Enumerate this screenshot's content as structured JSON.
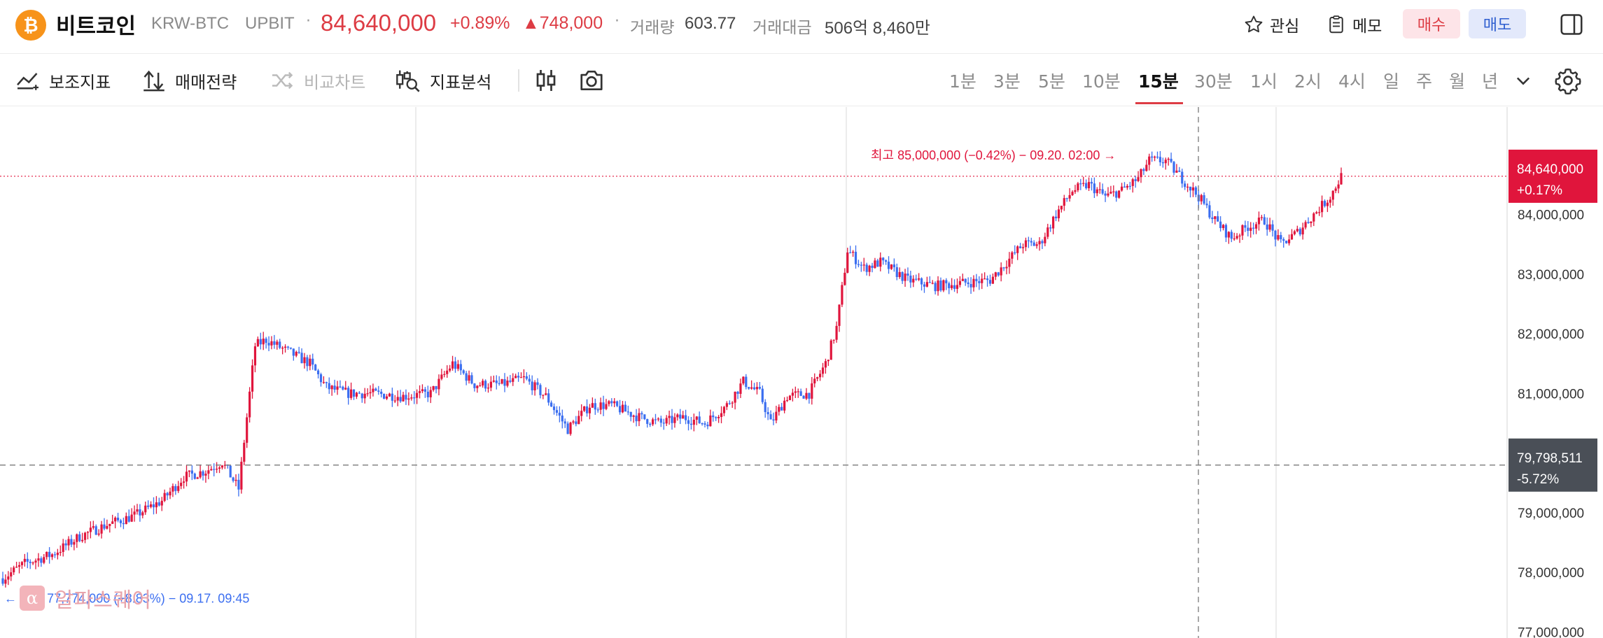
{
  "header": {
    "coin_icon": "bitcoin-icon",
    "coin_glyph": "₿",
    "coin_name": "비트코인",
    "pair": "KRW-BTC",
    "exchange": "UPBIT",
    "separator": "·",
    "price": "84,640,000",
    "change_pct": "+0.89%",
    "change_abs": "▲748,000",
    "volume_label": "거래량",
    "volume_value": "603.77",
    "amount_label": "거래대금",
    "amount_value": "506억 8,460만",
    "favorite_label": "관심",
    "memo_label": "메모",
    "buy_label": "매수",
    "sell_label": "매도"
  },
  "toolbar": {
    "indicators_label": "보조지표",
    "strategy_label": "매매전략",
    "compare_label": "비교차트",
    "analysis_label": "지표분석",
    "timeframes": [
      "1분",
      "3분",
      "5분",
      "10분",
      "15분",
      "30분",
      "1시",
      "2시",
      "4시",
      "일",
      "주",
      "월",
      "년"
    ],
    "active_timeframe": "15분"
  },
  "colors": {
    "up": "#e0153c",
    "down": "#3b6ef0",
    "accent_red": "#dd3c44",
    "price_tag_bg": "#e0153c",
    "crosshair_tag_bg": "#4a4f57"
  },
  "chart_data": {
    "type": "candlestick",
    "y_axis_labels": [
      "84,000,000",
      "83,000,000",
      "82,000,000",
      "81,000,000",
      "79,000,000",
      "78,000,000",
      "77,000,000"
    ],
    "y_axis_values": [
      84000000,
      83000000,
      82000000,
      81000000,
      79000000,
      78000000,
      77000000
    ],
    "ylim": [
      76900000,
      85800000
    ],
    "current_price_label": "84,640,000",
    "current_change_label": "+0.17%",
    "current_price": 84640000,
    "crosshair_price_label": "79,798,511",
    "crosshair_change_label": "-5.72%",
    "crosshair_price": 79798511,
    "high_annotation": "최고 85,000,000 (−0.42%) − 09.20. 02:00 →",
    "low_annotation": "← 최저 77,774,000 (+8.83%) − 09.17. 09:45",
    "high_value": 85000000,
    "low_value": 77774000,
    "close_path": [
      [
        0,
        77900000
      ],
      [
        8,
        78150000
      ],
      [
        18,
        78300000
      ],
      [
        28,
        78600000
      ],
      [
        38,
        78800000
      ],
      [
        48,
        78950000
      ],
      [
        58,
        79200000
      ],
      [
        66,
        79600000
      ],
      [
        74,
        79700000
      ],
      [
        80,
        79850000
      ],
      [
        86,
        79400000
      ],
      [
        88,
        80200000
      ],
      [
        92,
        81800000
      ],
      [
        96,
        81900000
      ],
      [
        104,
        81700000
      ],
      [
        112,
        81500000
      ],
      [
        118,
        81100000
      ],
      [
        126,
        81000000
      ],
      [
        134,
        81000000
      ],
      [
        146,
        80950000
      ],
      [
        156,
        81000000
      ],
      [
        164,
        81500000
      ],
      [
        172,
        81150000
      ],
      [
        182,
        81150000
      ],
      [
        190,
        81250000
      ],
      [
        198,
        80950000
      ],
      [
        206,
        80400000
      ],
      [
        214,
        80800000
      ],
      [
        222,
        80800000
      ],
      [
        232,
        80600000
      ],
      [
        240,
        80500000
      ],
      [
        248,
        80600000
      ],
      [
        256,
        80500000
      ],
      [
        264,
        80800000
      ],
      [
        270,
        81200000
      ],
      [
        276,
        81000000
      ],
      [
        280,
        80500000
      ],
      [
        286,
        80950000
      ],
      [
        294,
        81000000
      ],
      [
        300,
        81500000
      ],
      [
        304,
        82100000
      ],
      [
        308,
        83400000
      ],
      [
        314,
        83100000
      ],
      [
        320,
        83200000
      ],
      [
        330,
        82900000
      ],
      [
        340,
        82800000
      ],
      [
        350,
        82850000
      ],
      [
        360,
        82900000
      ],
      [
        366,
        83200000
      ],
      [
        372,
        83500000
      ],
      [
        378,
        83500000
      ],
      [
        384,
        84000000
      ],
      [
        390,
        84400000
      ],
      [
        396,
        84500000
      ],
      [
        402,
        84300000
      ],
      [
        408,
        84400000
      ],
      [
        414,
        84600000
      ],
      [
        418,
        84900000
      ],
      [
        424,
        84900000
      ],
      [
        430,
        84600000
      ],
      [
        436,
        84300000
      ],
      [
        442,
        83900000
      ],
      [
        448,
        83600000
      ],
      [
        454,
        83800000
      ],
      [
        460,
        83900000
      ],
      [
        466,
        83500000
      ],
      [
        472,
        83700000
      ],
      [
        478,
        84000000
      ],
      [
        484,
        84300000
      ],
      [
        488,
        84640000
      ]
    ]
  },
  "watermark": {
    "logo_glyph": "α",
    "text": "알파스퀘어"
  },
  "icons": {
    "favorite": "star-icon",
    "memo": "memo-icon",
    "layout": "layout-panel-icon",
    "indicators": "indicator-line-icon",
    "strategy": "strategy-arrows-icon",
    "compare": "shuffle-icon",
    "analysis": "analysis-candle-search-icon",
    "candle": "candlestick-icon",
    "camera": "camera-icon",
    "more": "chevron-down-icon",
    "settings": "gear-icon"
  }
}
